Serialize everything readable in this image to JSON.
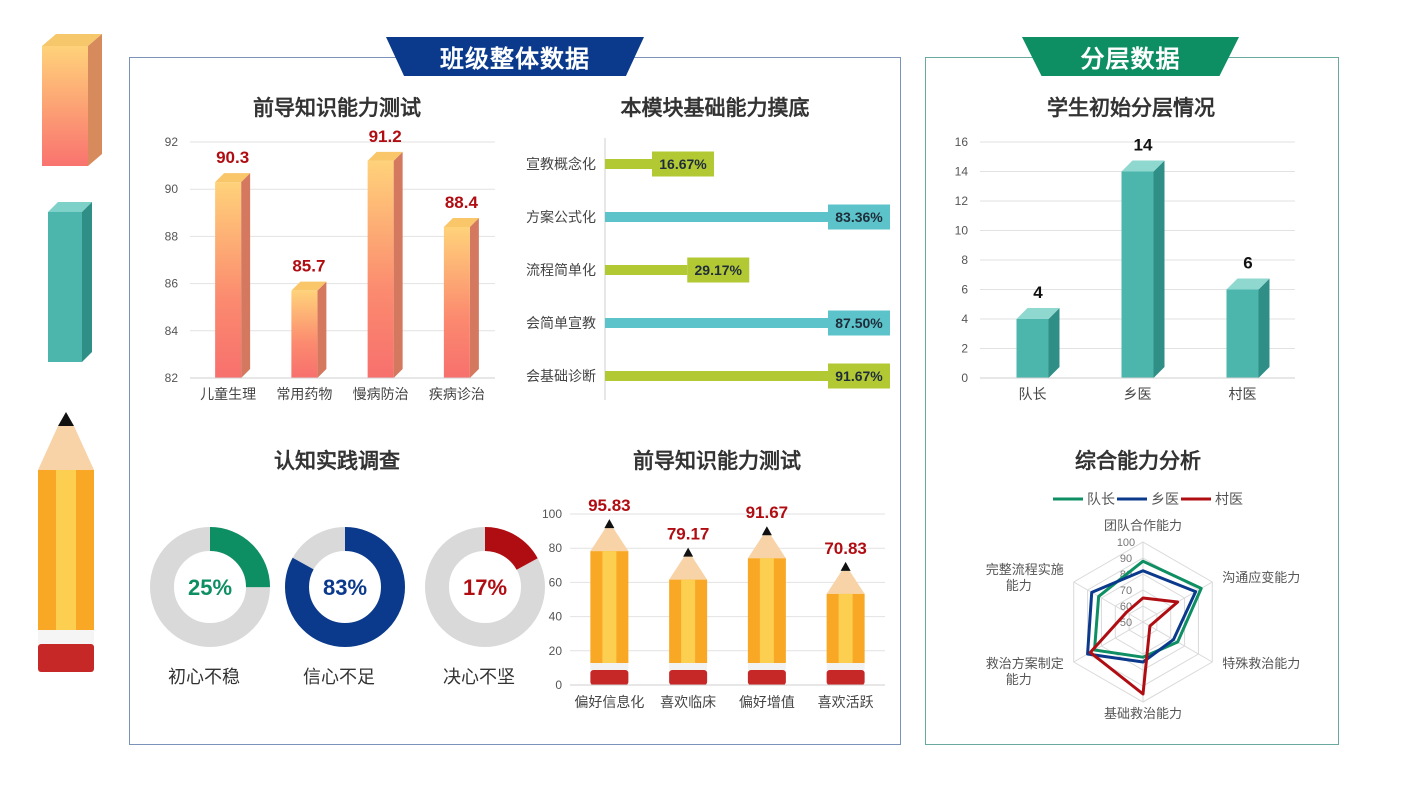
{
  "sections": {
    "left_banner": "班级整体数据",
    "right_banner": "分层数据"
  },
  "colors": {
    "navy": "#0b3a8c",
    "green": "#0e8f63",
    "teal": "#4db6ac",
    "lime": "#b3c934",
    "cyan": "#5bc3c9",
    "red": "#b00d12",
    "gray_ring": "#d9d9d9"
  },
  "chart_data": [
    {
      "id": "prior",
      "type": "bar",
      "title": "前导知识能力测试",
      "categories": [
        "儿童生理",
        "常用药物",
        "慢病防治",
        "疾病诊治"
      ],
      "values": [
        90.3,
        85.7,
        91.2,
        88.4
      ],
      "data_labels": [
        "90.3",
        "85.7",
        "91.2",
        "88.4"
      ],
      "ylim": [
        82,
        92
      ],
      "yticks": [
        "82",
        "84",
        "86",
        "88",
        "90",
        "92"
      ],
      "grid": true
    },
    {
      "id": "module",
      "type": "bar",
      "orientation": "horizontal",
      "title": "本模块基础能力摸底",
      "categories": [
        "宣教概念化",
        "方案公式化",
        "流程简单化",
        "会简单宣教",
        "会基础诊断"
      ],
      "values": [
        16.67,
        83.36,
        29.17,
        87.5,
        91.67
      ],
      "data_labels": [
        "16.67%",
        "83.36%",
        "29.17%",
        "87.50%",
        "91.67%"
      ],
      "xlim": [
        0,
        100
      ],
      "bar_colors": [
        "#b3c934",
        "#5bc3c9",
        "#b3c934",
        "#5bc3c9",
        "#b3c934"
      ]
    },
    {
      "id": "survey",
      "type": "pie",
      "title": "认知实践调查",
      "items": [
        {
          "name": "初心不稳",
          "value": 25,
          "label": "25%",
          "color": "#0e8f63"
        },
        {
          "name": "信心不足",
          "value": 83,
          "label": "83%",
          "color": "#0b3a8c"
        },
        {
          "name": "决心不坚",
          "value": 17,
          "label": "17%",
          "color": "#b00d12"
        }
      ]
    },
    {
      "id": "pref",
      "type": "bar",
      "title": "前导知识能力测试",
      "categories": [
        "偏好信息化",
        "喜欢临床",
        "偏好增值",
        "喜欢活跃"
      ],
      "values": [
        95.83,
        79.17,
        91.67,
        70.83
      ],
      "data_labels": [
        "95.83",
        "79.17",
        "91.67",
        "70.83"
      ],
      "ylim": [
        0,
        100
      ],
      "yticks": [
        "0",
        "20",
        "40",
        "60",
        "80",
        "100"
      ],
      "grid": true
    },
    {
      "id": "layer",
      "type": "bar",
      "title": "学生初始分层情况",
      "categories": [
        "队长",
        "乡医",
        "村医"
      ],
      "values": [
        4,
        14,
        6
      ],
      "data_labels": [
        "4",
        "14",
        "6"
      ],
      "ylim": [
        0,
        16
      ],
      "yticks": [
        "0",
        "2",
        "4",
        "6",
        "8",
        "10",
        "12",
        "14",
        "16"
      ],
      "grid": true
    },
    {
      "id": "radar",
      "type": "radar",
      "title": "综合能力分析",
      "axes": [
        "团队合作能力",
        "沟通应变能力",
        "特殊救治能力",
        "基础救治能力",
        "救治方案制定能力",
        "完整流程实施能力"
      ],
      "axis_label_lines": [
        [
          "团队合作能力"
        ],
        [
          "沟通应变能力"
        ],
        [
          "特殊救治能力"
        ],
        [
          "基础救治能力"
        ],
        [
          "救治方案制定",
          "能力"
        ],
        [
          "完整流程实施",
          "能力"
        ]
      ],
      "rticks": [
        "50",
        "60",
        "70",
        "80",
        "90",
        "100"
      ],
      "rlim": [
        50,
        100
      ],
      "legend_position": "top",
      "series": [
        {
          "name": "队长",
          "values": [
            88,
            92,
            75,
            72,
            85,
            82
          ],
          "color": "#0e8f63"
        },
        {
          "name": "乡医",
          "values": [
            82,
            88,
            72,
            75,
            90,
            87
          ],
          "color": "#0b3a8c"
        },
        {
          "name": "村医",
          "values": [
            65,
            75,
            55,
            95,
            88,
            62
          ],
          "color": "#b00d12"
        }
      ]
    }
  ]
}
